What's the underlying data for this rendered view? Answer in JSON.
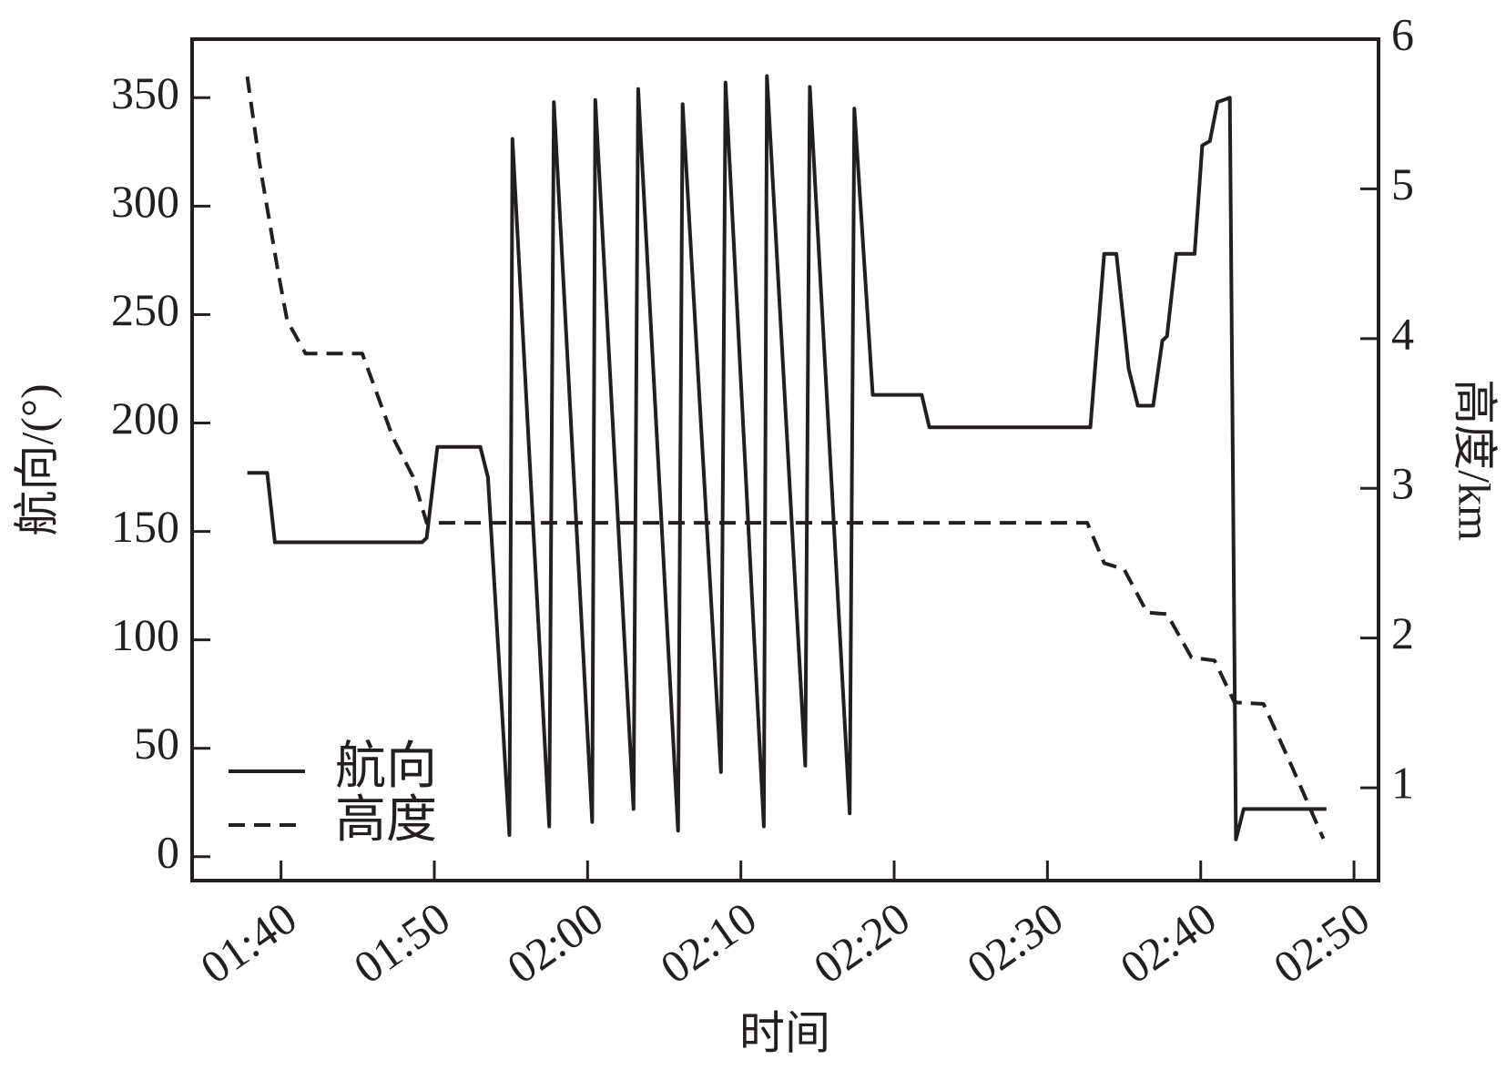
{
  "chart_data": {
    "type": "line",
    "x_label": "时间",
    "y_label": "航向/(°)",
    "y2_label": "高度/km",
    "xlim": [
      94.2,
      171.6
    ],
    "xticks": [
      {
        "value": 100,
        "label": "01:40"
      },
      {
        "value": 110,
        "label": "01:50"
      },
      {
        "value": 120,
        "label": "02:00"
      },
      {
        "value": 130,
        "label": "02:10"
      },
      {
        "value": 140,
        "label": "02:20"
      },
      {
        "value": 150,
        "label": "02:30"
      },
      {
        "value": 160,
        "label": "02:40"
      },
      {
        "value": 170,
        "label": "02:50"
      }
    ],
    "ylim": [
      -11,
      377
    ],
    "yticks": [
      0,
      50,
      100,
      150,
      200,
      250,
      300,
      350
    ],
    "y2lim": [
      0.38,
      6.0
    ],
    "y2ticks": [
      1,
      2,
      3,
      4,
      5,
      6
    ],
    "legend": "lower left",
    "series": [
      {
        "name": "航向",
        "color": "#231f20",
        "dash": false,
        "x": [
          97.8,
          99.1,
          99.6,
          109.2,
          109.5,
          110.2,
          113.0,
          113.5,
          114.9,
          115.1,
          117.5,
          117.8,
          120.3,
          120.5,
          123.0,
          123.3,
          125.9,
          126.2,
          128.7,
          129.0,
          131.5,
          131.7,
          134.2,
          134.5,
          137.1,
          137.4,
          138.6,
          141.8,
          142.3,
          152.8,
          153.7,
          154.5,
          155.3,
          155.9,
          156.9,
          157.5,
          157.8,
          158.4,
          159.6,
          160.1,
          160.6,
          161.1,
          161.9,
          162.3,
          162.8,
          168.2
        ],
        "values": [
          177,
          177,
          145,
          145,
          147,
          189,
          189,
          175,
          10,
          331,
          14,
          348,
          16,
          349,
          22,
          354,
          12,
          347,
          39,
          357,
          14,
          360,
          42,
          355,
          20,
          345,
          213,
          213,
          198,
          198,
          278,
          278,
          225,
          208,
          208,
          238,
          240,
          278,
          278,
          328,
          330,
          348,
          350,
          8,
          22,
          22
        ]
      },
      {
        "name": "高度",
        "color": "#231f20",
        "dash": true,
        "axis": "y2",
        "x": [
          97.8,
          98.6,
          99.8,
          100.4,
          101.6,
          105.3,
          107.3,
          108.6,
          109.5,
          152.6,
          153.7,
          155.0,
          156.5,
          157.8,
          159.4,
          160.9,
          162.2,
          164.1,
          166.0,
          168.0
        ],
        "values": [
          5.75,
          5.17,
          4.45,
          4.12,
          3.9,
          3.9,
          3.34,
          3.08,
          2.77,
          2.77,
          2.5,
          2.46,
          2.17,
          2.16,
          1.87,
          1.85,
          1.57,
          1.56,
          1.13,
          0.66
        ]
      }
    ]
  }
}
